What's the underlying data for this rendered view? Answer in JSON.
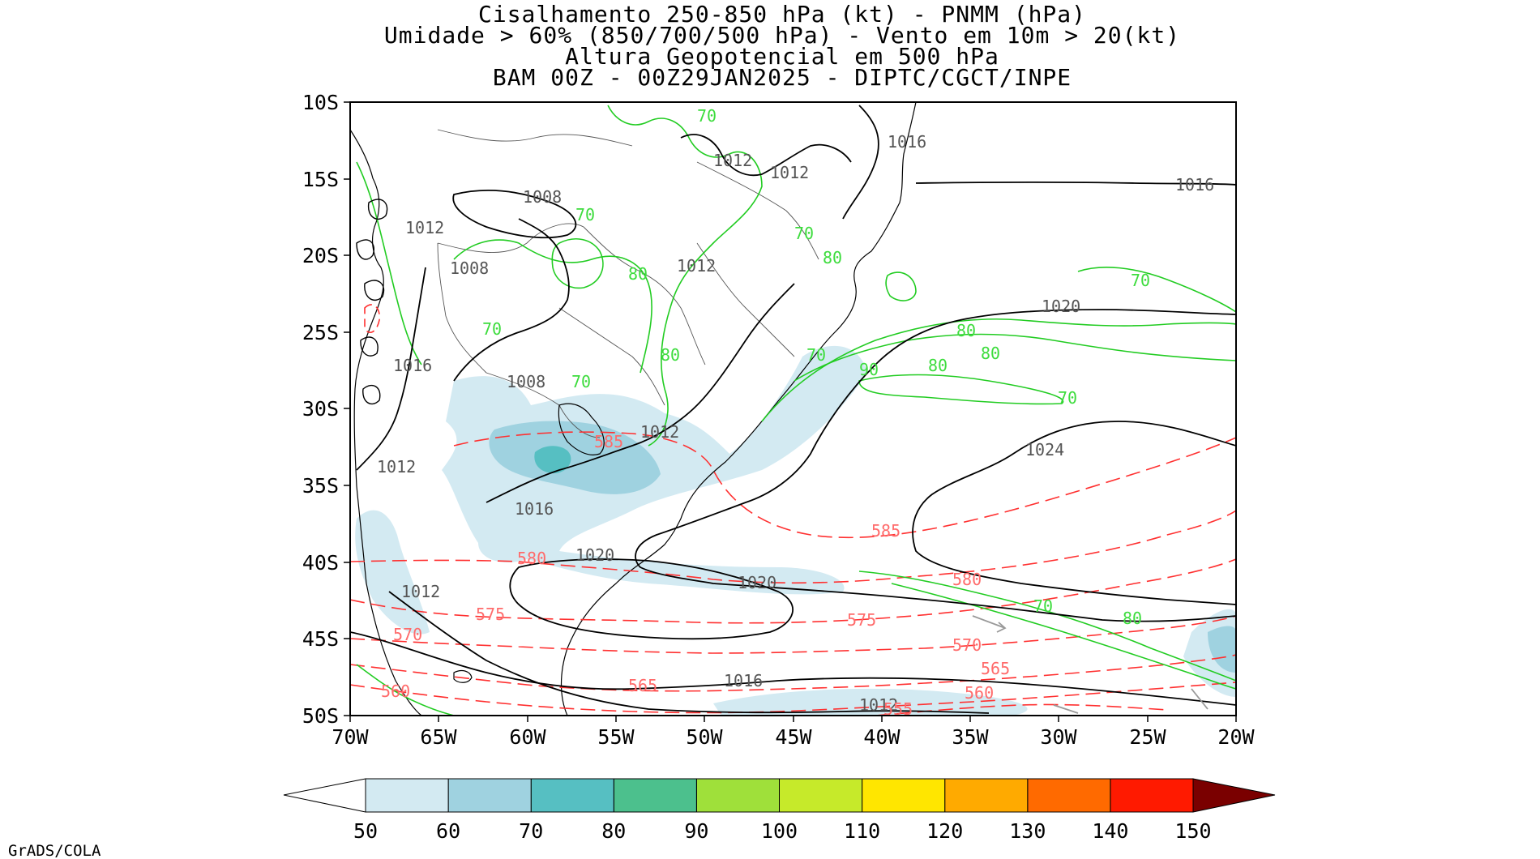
{
  "title": {
    "line1": "Cisalhamento 250-850 hPa (kt) - PNMM (hPa)",
    "line2": "Umidade > 60% (850/700/500 hPa) - Vento em 10m > 20(kt)",
    "line3": "Altura Geopotencial em 500 hPa",
    "line4": "BAM 00Z - 00Z29JAN2025 - DIPTC/CGCT/INPE"
  },
  "axes": {
    "lat_labels": [
      "10S",
      "15S",
      "20S",
      "25S",
      "30S",
      "35S",
      "40S",
      "45S",
      "50S"
    ],
    "lon_labels": [
      "70W",
      "65W",
      "60W",
      "55W",
      "50W",
      "45W",
      "40W",
      "35W",
      "30W",
      "25W",
      "20W"
    ]
  },
  "colorbar": {
    "labels": [
      "50",
      "60",
      "70",
      "80",
      "90",
      "100",
      "110",
      "120",
      "130",
      "140",
      "150"
    ],
    "colors": [
      "#d3eaf2",
      "#9fd2e0",
      "#56bfc2",
      "#4cc08d",
      "#9fe03a",
      "#c6ea2a",
      "#ffe600",
      "#ffaa00",
      "#ff6a00",
      "#ff1a00",
      "#c40000",
      "#7a0000"
    ],
    "below_color": "#ffffff"
  },
  "contour_labels": {
    "mslp": [
      "1016",
      "1016",
      "1012",
      "1012",
      "1008",
      "1008",
      "1012",
      "1012",
      "1012",
      "1008",
      "1016",
      "1012",
      "1020",
      "1024",
      "1016",
      "1020",
      "1020",
      "1012",
      "1016",
      "1012"
    ],
    "rh": [
      "70",
      "70",
      "70",
      "80",
      "80",
      "70",
      "70",
      "80",
      "80",
      "70",
      "80",
      "90",
      "80",
      "70",
      "70",
      "80",
      "70"
    ],
    "gh": [
      "585",
      "585",
      "580",
      "580",
      "575",
      "575",
      "570",
      "570",
      "565",
      "565",
      "560",
      "560",
      "555"
    ]
  },
  "footer": "GrADS/COLA",
  "colors": {
    "mslp": "#000000",
    "rh": "#22cc22",
    "gh": "#ff3030",
    "border": "#000000",
    "coast": "#000000"
  }
}
